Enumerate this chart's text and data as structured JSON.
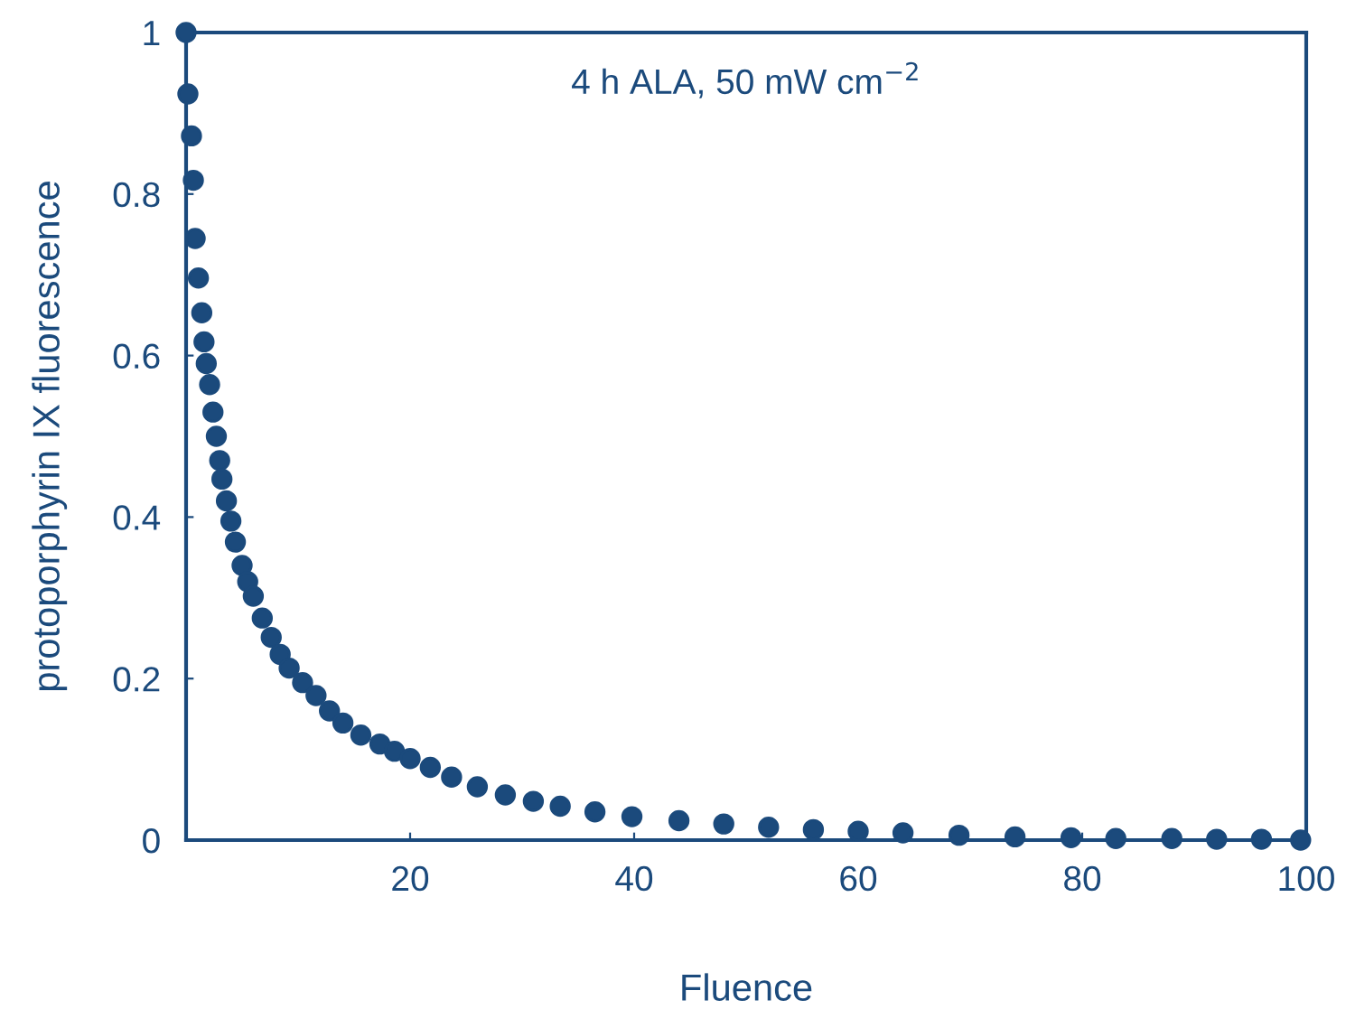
{
  "chart_data": {
    "type": "scatter",
    "xlabel": "Fluence",
    "ylabel": "protoporphyrin IX fluorescence",
    "annotations": [
      "4 h ALA, 50 mW cm$^{−2}$"
    ],
    "series": [
      {
        "color": "#1b4a7c",
        "x": [
          0,
          0.16,
          0.48,
          0.65,
          0.81,
          1.1,
          1.4,
          1.6,
          1.8,
          2.1,
          2.4,
          2.7,
          3.0,
          3.2,
          3.6,
          4.0,
          4.4,
          5.0,
          5.5,
          6.0,
          6.8,
          7.6,
          8.4,
          9.2,
          10.4,
          11.6,
          12.8,
          14,
          15.6,
          17.3,
          18.6,
          20,
          21.8,
          23.7,
          26,
          28.5,
          31,
          33.4,
          36.5,
          39.8,
          44,
          48,
          52,
          56,
          60,
          64,
          69,
          74,
          79,
          83,
          88,
          92,
          96,
          99.5
        ],
        "values": [
          1.0,
          0.924,
          0.872,
          0.817,
          0.745,
          0.696,
          0.653,
          0.617,
          0.59,
          0.564,
          0.53,
          0.5,
          0.47,
          0.447,
          0.42,
          0.395,
          0.369,
          0.34,
          0.32,
          0.302,
          0.275,
          0.251,
          0.23,
          0.213,
          0.195,
          0.179,
          0.16,
          0.145,
          0.13,
          0.119,
          0.11,
          0.101,
          0.09,
          0.078,
          0.066,
          0.056,
          0.048,
          0.042,
          0.035,
          0.029,
          0.024,
          0.02,
          0.016,
          0.013,
          0.011,
          0.009,
          0.006,
          0.004,
          0.003,
          0.002,
          0.002,
          0.001,
          0.001,
          0
        ]
      }
    ],
    "marker": "circle",
    "xlim": [
      0,
      100
    ],
    "xticks": [
      20,
      40,
      60,
      80,
      100
    ],
    "ylim": [
      0,
      1
    ],
    "yticks": [
      0,
      0.2,
      0.4,
      0.6,
      0.8,
      1
    ],
    "grid": false,
    "legend": false
  }
}
